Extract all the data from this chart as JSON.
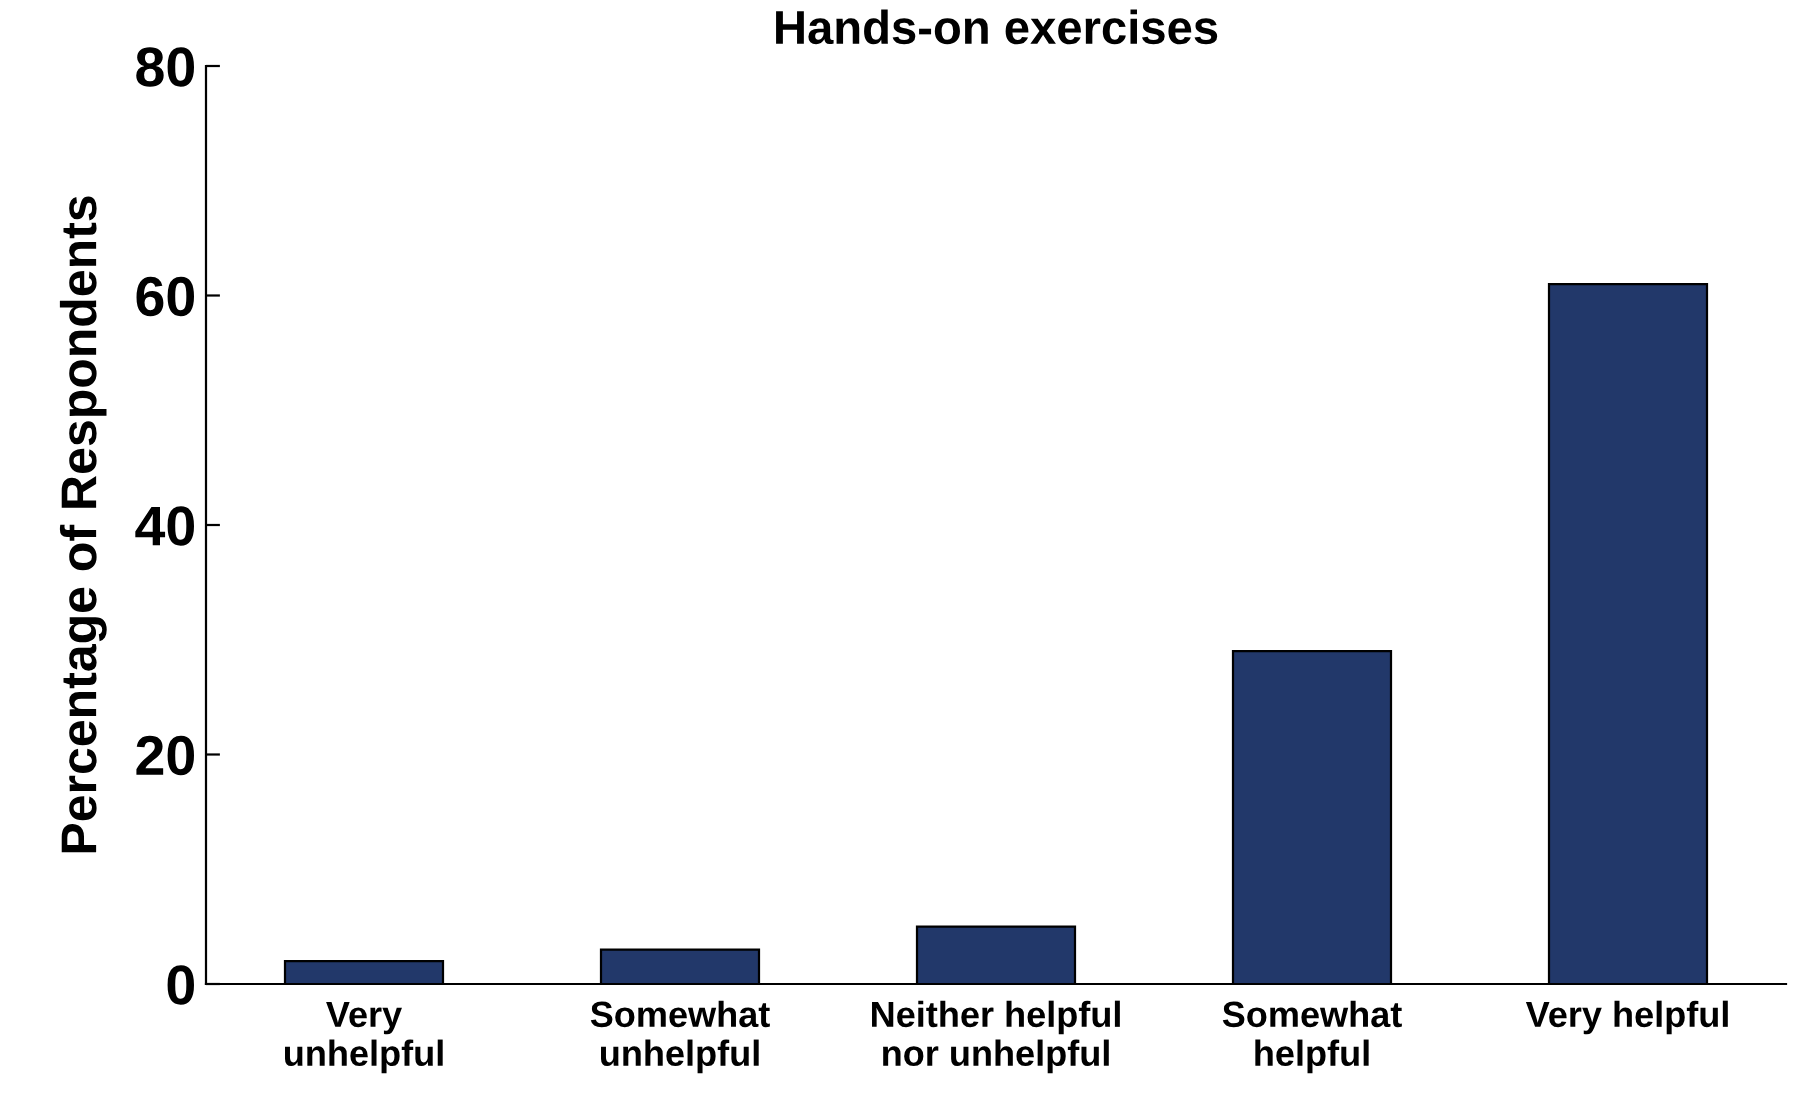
{
  "chart_data": {
    "type": "bar",
    "title": "Hands-on exercises",
    "ylabel": "Percentage of Respondents",
    "categories": [
      "Very\nunhelpful",
      "Somewhat\nunhelpful",
      "Neither helpful\nnor unhelpful",
      "Somewhat\nhelpful",
      "Very helpful"
    ],
    "values": [
      2,
      3,
      5,
      29,
      61
    ],
    "color": "#22386a",
    "ylim": [
      0,
      80
    ],
    "yticks": [
      0,
      20,
      40,
      60,
      80
    ],
    "grid": false,
    "legend": false
  }
}
